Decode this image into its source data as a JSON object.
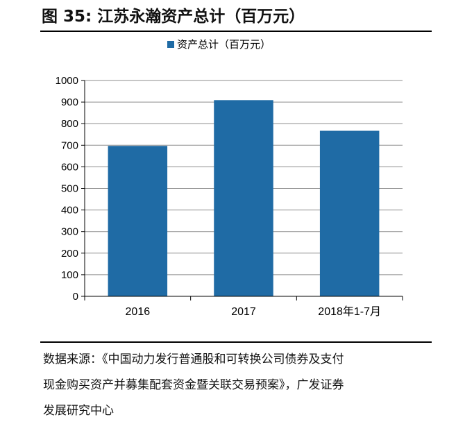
{
  "figure_title": "图 35: 江苏永瀚资产总计（百万元）",
  "source": {
    "lines": [
      "数据来源：《中国动力发行普通股和可转换公司债券及支付",
      "现金购买资产并募集配套资金暨关联交易预案》，广发证券",
      "发展研究中心"
    ]
  },
  "colors": {
    "bar": "#1F6BA5",
    "grid": "#8C8C8C",
    "axis": "#000000"
  },
  "chart_data": {
    "type": "bar",
    "title": "",
    "xlabel": "",
    "ylabel": "",
    "categories": [
      "2016",
      "2017",
      "2018年1-7月"
    ],
    "series": [
      {
        "name": "资产总计（百万元）",
        "values": [
          697,
          909,
          767
        ]
      }
    ],
    "ylim": [
      0,
      1000
    ],
    "yticks": [
      0,
      100,
      200,
      300,
      400,
      500,
      600,
      700,
      800,
      900,
      1000
    ],
    "grid": true,
    "legend_position": "top-center"
  }
}
